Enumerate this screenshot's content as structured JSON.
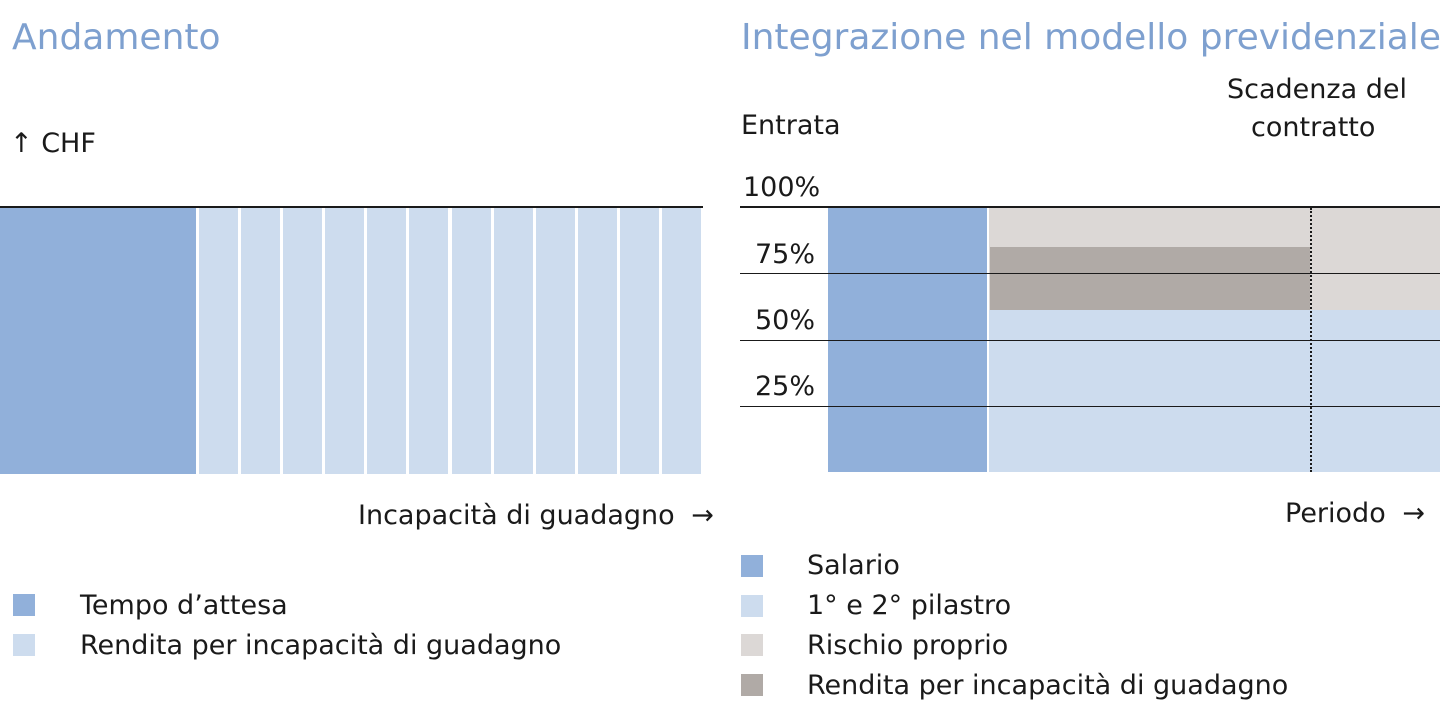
{
  "colors": {
    "salary": "#91b0da",
    "pillars": "#cddcee",
    "own_risk": "#dcd8d6",
    "disability_rent": "#b0aaa6"
  },
  "left": {
    "title": "Andamento",
    "y_axis_label": "↑  CHF",
    "x_axis_label": "Incapacità di guadagno",
    "x_arrow": "→",
    "legend": [
      {
        "color_key": "salary",
        "label": "Tempo d’attesa"
      },
      {
        "color_key": "pillars",
        "label": "Rendita per incapacità di guadagno"
      }
    ],
    "waiting_fraction": 0.28,
    "rent_stripes": 12
  },
  "right": {
    "title": "Integrazione nel modello previdenziale",
    "y_axis_label": "Entrata",
    "contract_label_line1": "Scadenza del",
    "contract_label_line2": "contratto",
    "ticks": [
      "100%",
      "75%",
      "50%",
      "25%"
    ],
    "x_axis_label": "Periodo",
    "x_arrow": "→",
    "legend": [
      {
        "color_key": "salary",
        "label": "Salario"
      },
      {
        "color_key": "pillars",
        "label": "1° e 2° pilastro"
      },
      {
        "color_key": "own_risk",
        "label": "Rischio proprio"
      },
      {
        "color_key": "disability_rent",
        "label": "Rendita per incapacità di guadagno"
      }
    ],
    "levels_percent": {
      "pillars_top": 61,
      "disability_rent_top": 85,
      "own_risk_top": 100
    }
  }
}
